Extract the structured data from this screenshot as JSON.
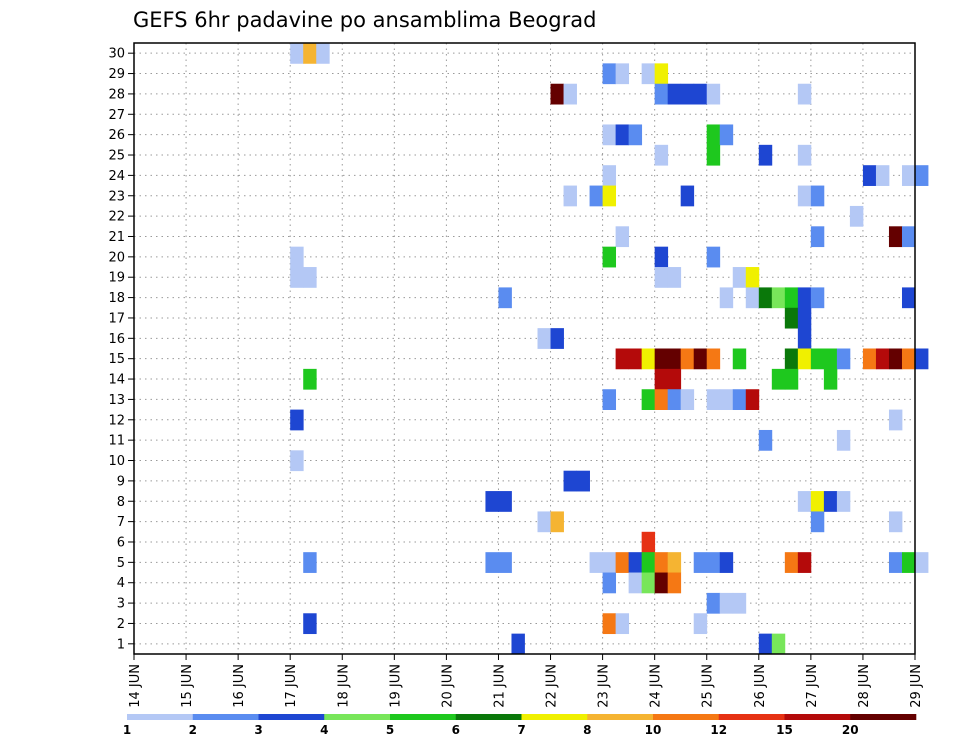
{
  "chart_data": {
    "type": "heatmap",
    "title": "GEFS 6hr padavine po ansamblima Beograd",
    "xlabel": "",
    "ylabel": "",
    "x_ticks": [
      "14 JUN",
      "15 JUN",
      "16 JUN",
      "17 JUN",
      "18 JUN",
      "19 JUN",
      "20 JUN",
      "21 JUN",
      "22 JUN",
      "23 JUN",
      "24 JUN",
      "25 JUN",
      "26 JUN",
      "27 JUN",
      "28 JUN",
      "29 JUN"
    ],
    "y_ticks": [
      "1",
      "2",
      "3",
      "4",
      "5",
      "6",
      "7",
      "8",
      "9",
      "10",
      "11",
      "12",
      "13",
      "14",
      "15",
      "16",
      "17",
      "18",
      "19",
      "20",
      "21",
      "22",
      "23",
      "24",
      "25",
      "26",
      "27",
      "28",
      "29",
      "30"
    ],
    "xlim": [
      "2020-06-14",
      "2020-06-29"
    ],
    "ylim": [
      0,
      30
    ],
    "grid": true,
    "colorbar": {
      "levels": [
        "1",
        "2",
        "3",
        "4",
        "5",
        "6",
        "7",
        "8",
        "10",
        "12",
        "15",
        "20"
      ],
      "colors": [
        "#b4c8f5",
        "#5a8cf0",
        "#1e46d2",
        "#78e65a",
        "#1ec81e",
        "#0a780a",
        "#f0f000",
        "#f5b432",
        "#f57814",
        "#e63214",
        "#b40a0a",
        "#640000"
      ]
    },
    "cells": [
      {
        "member": 30,
        "time": "17 JUN 00",
        "level": "1"
      },
      {
        "member": 30,
        "time": "17 JUN 06",
        "level": "8"
      },
      {
        "member": 30,
        "time": "17 JUN 12",
        "level": "1"
      },
      {
        "member": 29,
        "time": "23 JUN 00",
        "level": "2"
      },
      {
        "member": 29,
        "time": "23 JUN 06",
        "level": "1"
      },
      {
        "member": 29,
        "time": "23 JUN 18",
        "level": "1"
      },
      {
        "member": 29,
        "time": "24 JUN 00",
        "level": "7"
      },
      {
        "member": 28,
        "time": "22 JUN 00",
        "level": "20"
      },
      {
        "member": 28,
        "time": "22 JUN 06",
        "level": "1"
      },
      {
        "member": 28,
        "time": "24 JUN 00",
        "level": "2"
      },
      {
        "member": 28,
        "time": "24 JUN 06",
        "level": "3"
      },
      {
        "member": 28,
        "time": "24 JUN 12",
        "level": "3"
      },
      {
        "member": 28,
        "time": "24 JUN 18",
        "level": "3"
      },
      {
        "member": 28,
        "time": "25 JUN 00",
        "level": "1"
      },
      {
        "member": 28,
        "time": "26 JUN 18",
        "level": "1"
      },
      {
        "member": 26,
        "time": "23 JUN 00",
        "level": "1"
      },
      {
        "member": 26,
        "time": "23 JUN 06",
        "level": "3"
      },
      {
        "member": 26,
        "time": "23 JUN 12",
        "level": "2"
      },
      {
        "member": 26,
        "time": "25 JUN 00",
        "level": "5"
      },
      {
        "member": 26,
        "time": "25 JUN 06",
        "level": "2"
      },
      {
        "member": 25,
        "time": "24 JUN 00",
        "level": "1"
      },
      {
        "member": 25,
        "time": "25 JUN 00",
        "level": "5"
      },
      {
        "member": 25,
        "time": "26 JUN 00",
        "level": "3"
      },
      {
        "member": 25,
        "time": "26 JUN 18",
        "level": "1"
      },
      {
        "member": 24,
        "time": "23 JUN 00",
        "level": "1"
      },
      {
        "member": 24,
        "time": "28 JUN 00",
        "level": "3"
      },
      {
        "member": 24,
        "time": "28 JUN 06",
        "level": "1"
      },
      {
        "member": 24,
        "time": "28 JUN 18",
        "level": "1"
      },
      {
        "member": 24,
        "time": "29 JUN 00",
        "level": "2"
      },
      {
        "member": 23,
        "time": "22 JUN 06",
        "level": "1"
      },
      {
        "member": 23,
        "time": "22 JUN 18",
        "level": "2"
      },
      {
        "member": 23,
        "time": "23 JUN 00",
        "level": "7"
      },
      {
        "member": 23,
        "time": "24 JUN 12",
        "level": "3"
      },
      {
        "member": 23,
        "time": "26 JUN 18",
        "level": "1"
      },
      {
        "member": 23,
        "time": "27 JUN 00",
        "level": "2"
      },
      {
        "member": 22,
        "time": "27 JUN 18",
        "level": "1"
      },
      {
        "member": 21,
        "time": "23 JUN 06",
        "level": "1"
      },
      {
        "member": 21,
        "time": "27 JUN 00",
        "level": "2"
      },
      {
        "member": 21,
        "time": "28 JUN 12",
        "level": "20"
      },
      {
        "member": 21,
        "time": "28 JUN 18",
        "level": "2"
      },
      {
        "member": 20,
        "time": "17 JUN 00",
        "level": "1"
      },
      {
        "member": 20,
        "time": "23 JUN 00",
        "level": "5"
      },
      {
        "member": 20,
        "time": "24 JUN 00",
        "level": "3"
      },
      {
        "member": 20,
        "time": "25 JUN 00",
        "level": "2"
      },
      {
        "member": 19,
        "time": "17 JUN 00",
        "level": "1"
      },
      {
        "member": 19,
        "time": "17 JUN 06",
        "level": "1"
      },
      {
        "member": 19,
        "time": "24 JUN 00",
        "level": "1"
      },
      {
        "member": 19,
        "time": "24 JUN 06",
        "level": "1"
      },
      {
        "member": 19,
        "time": "25 JUN 12",
        "level": "1"
      },
      {
        "member": 19,
        "time": "25 JUN 18",
        "level": "7"
      },
      {
        "member": 18,
        "time": "21 JUN 00",
        "level": "2"
      },
      {
        "member": 18,
        "time": "25 JUN 06",
        "level": "1"
      },
      {
        "member": 18,
        "time": "25 JUN 18",
        "level": "1"
      },
      {
        "member": 18,
        "time": "26 JUN 00",
        "level": "6"
      },
      {
        "member": 18,
        "time": "26 JUN 06",
        "level": "4"
      },
      {
        "member": 18,
        "time": "26 JUN 12",
        "level": "5"
      },
      {
        "member": 18,
        "time": "26 JUN 18",
        "level": "3"
      },
      {
        "member": 18,
        "time": "27 JUN 00",
        "level": "2"
      },
      {
        "member": 18,
        "time": "28 JUN 18",
        "level": "3"
      },
      {
        "member": 17,
        "time": "26 JUN 12",
        "level": "6"
      },
      {
        "member": 17,
        "time": "26 JUN 18",
        "level": "3"
      },
      {
        "member": 16,
        "time": "21 JUN 18",
        "level": "1"
      },
      {
        "member": 16,
        "time": "22 JUN 00",
        "level": "3"
      },
      {
        "member": 16,
        "time": "26 JUN 18",
        "level": "3"
      },
      {
        "member": 15,
        "time": "23 JUN 06",
        "level": "15"
      },
      {
        "member": 15,
        "time": "23 JUN 12",
        "level": "15"
      },
      {
        "member": 15,
        "time": "23 JUN 18",
        "level": "7"
      },
      {
        "member": 15,
        "time": "24 JUN 00",
        "level": "20"
      },
      {
        "member": 15,
        "time": "24 JUN 06",
        "level": "20"
      },
      {
        "member": 15,
        "time": "24 JUN 12",
        "level": "10"
      },
      {
        "member": 15,
        "time": "24 JUN 18",
        "level": "20"
      },
      {
        "member": 15,
        "time": "25 JUN 00",
        "level": "10"
      },
      {
        "member": 15,
        "time": "25 JUN 12",
        "level": "5"
      },
      {
        "member": 15,
        "time": "26 JUN 12",
        "level": "6"
      },
      {
        "member": 15,
        "time": "26 JUN 18",
        "level": "7"
      },
      {
        "member": 15,
        "time": "27 JUN 00",
        "level": "5"
      },
      {
        "member": 15,
        "time": "27 JUN 06",
        "level": "5"
      },
      {
        "member": 15,
        "time": "27 JUN 12",
        "level": "2"
      },
      {
        "member": 15,
        "time": "28 JUN 00",
        "level": "10"
      },
      {
        "member": 15,
        "time": "28 JUN 06",
        "level": "15"
      },
      {
        "member": 15,
        "time": "28 JUN 12",
        "level": "20"
      },
      {
        "member": 15,
        "time": "28 JUN 18",
        "level": "10"
      },
      {
        "member": 15,
        "time": "29 JUN 00",
        "level": "3"
      },
      {
        "member": 14,
        "time": "17 JUN 06",
        "level": "5"
      },
      {
        "member": 14,
        "time": "24 JUN 00",
        "level": "15"
      },
      {
        "member": 14,
        "time": "24 JUN 06",
        "level": "15"
      },
      {
        "member": 14,
        "time": "26 JUN 06",
        "level": "5"
      },
      {
        "member": 14,
        "time": "26 JUN 12",
        "level": "5"
      },
      {
        "member": 14,
        "time": "27 JUN 06",
        "level": "5"
      },
      {
        "member": 13,
        "time": "23 JUN 00",
        "level": "2"
      },
      {
        "member": 13,
        "time": "23 JUN 18",
        "level": "5"
      },
      {
        "member": 13,
        "time": "24 JUN 00",
        "level": "10"
      },
      {
        "member": 13,
        "time": "24 JUN 06",
        "level": "2"
      },
      {
        "member": 13,
        "time": "24 JUN 12",
        "level": "1"
      },
      {
        "member": 13,
        "time": "25 JUN 00",
        "level": "1"
      },
      {
        "member": 13,
        "time": "25 JUN 06",
        "level": "1"
      },
      {
        "member": 13,
        "time": "25 JUN 12",
        "level": "2"
      },
      {
        "member": 13,
        "time": "25 JUN 18",
        "level": "15"
      },
      {
        "member": 12,
        "time": "17 JUN 00",
        "level": "3"
      },
      {
        "member": 12,
        "time": "28 JUN 12",
        "level": "1"
      },
      {
        "member": 11,
        "time": "26 JUN 00",
        "level": "2"
      },
      {
        "member": 11,
        "time": "27 JUN 12",
        "level": "1"
      },
      {
        "member": 10,
        "time": "17 JUN 00",
        "level": "1"
      },
      {
        "member": 9,
        "time": "22 JUN 06",
        "level": "3"
      },
      {
        "member": 9,
        "time": "22 JUN 12",
        "level": "3"
      },
      {
        "member": 8,
        "time": "20 JUN 18",
        "level": "3"
      },
      {
        "member": 8,
        "time": "21 JUN 00",
        "level": "3"
      },
      {
        "member": 8,
        "time": "26 JUN 18",
        "level": "1"
      },
      {
        "member": 8,
        "time": "27 JUN 00",
        "level": "7"
      },
      {
        "member": 8,
        "time": "27 JUN 06",
        "level": "3"
      },
      {
        "member": 8,
        "time": "27 JUN 12",
        "level": "1"
      },
      {
        "member": 7,
        "time": "21 JUN 18",
        "level": "1"
      },
      {
        "member": 7,
        "time": "22 JUN 00",
        "level": "8"
      },
      {
        "member": 7,
        "time": "27 JUN 00",
        "level": "2"
      },
      {
        "member": 7,
        "time": "28 JUN 12",
        "level": "1"
      },
      {
        "member": 6,
        "time": "23 JUN 18",
        "level": "12"
      },
      {
        "member": 5,
        "time": "17 JUN 06",
        "level": "2"
      },
      {
        "member": 5,
        "time": "20 JUN 18",
        "level": "2"
      },
      {
        "member": 5,
        "time": "21 JUN 00",
        "level": "2"
      },
      {
        "member": 5,
        "time": "22 JUN 18",
        "level": "1"
      },
      {
        "member": 5,
        "time": "23 JUN 00",
        "level": "1"
      },
      {
        "member": 5,
        "time": "23 JUN 06",
        "level": "10"
      },
      {
        "member": 5,
        "time": "23 JUN 12",
        "level": "3"
      },
      {
        "member": 5,
        "time": "23 JUN 18",
        "level": "5"
      },
      {
        "member": 5,
        "time": "24 JUN 00",
        "level": "10"
      },
      {
        "member": 5,
        "time": "24 JUN 06",
        "level": "8"
      },
      {
        "member": 5,
        "time": "24 JUN 18",
        "level": "2"
      },
      {
        "member": 5,
        "time": "25 JUN 00",
        "level": "2"
      },
      {
        "member": 5,
        "time": "25 JUN 06",
        "level": "3"
      },
      {
        "member": 5,
        "time": "26 JUN 12",
        "level": "10"
      },
      {
        "member": 5,
        "time": "26 JUN 18",
        "level": "15"
      },
      {
        "member": 5,
        "time": "28 JUN 12",
        "level": "2"
      },
      {
        "member": 5,
        "time": "28 JUN 18",
        "level": "5"
      },
      {
        "member": 5,
        "time": "29 JUN 00",
        "level": "1"
      },
      {
        "member": 4,
        "time": "23 JUN 00",
        "level": "2"
      },
      {
        "member": 4,
        "time": "23 JUN 12",
        "level": "1"
      },
      {
        "member": 4,
        "time": "23 JUN 18",
        "level": "4"
      },
      {
        "member": 4,
        "time": "24 JUN 00",
        "level": "20"
      },
      {
        "member": 4,
        "time": "24 JUN 06",
        "level": "10"
      },
      {
        "member": 3,
        "time": "25 JUN 00",
        "level": "2"
      },
      {
        "member": 3,
        "time": "25 JUN 06",
        "level": "1"
      },
      {
        "member": 3,
        "time": "25 JUN 12",
        "level": "1"
      },
      {
        "member": 2,
        "time": "17 JUN 06",
        "level": "3"
      },
      {
        "member": 2,
        "time": "23 JUN 00",
        "level": "10"
      },
      {
        "member": 2,
        "time": "23 JUN 06",
        "level": "1"
      },
      {
        "member": 2,
        "time": "24 JUN 18",
        "level": "1"
      },
      {
        "member": 1,
        "time": "21 JUN 06",
        "level": "3"
      },
      {
        "member": 1,
        "time": "26 JUN 00",
        "level": "3"
      },
      {
        "member": 1,
        "time": "26 JUN 06",
        "level": "4"
      }
    ]
  }
}
